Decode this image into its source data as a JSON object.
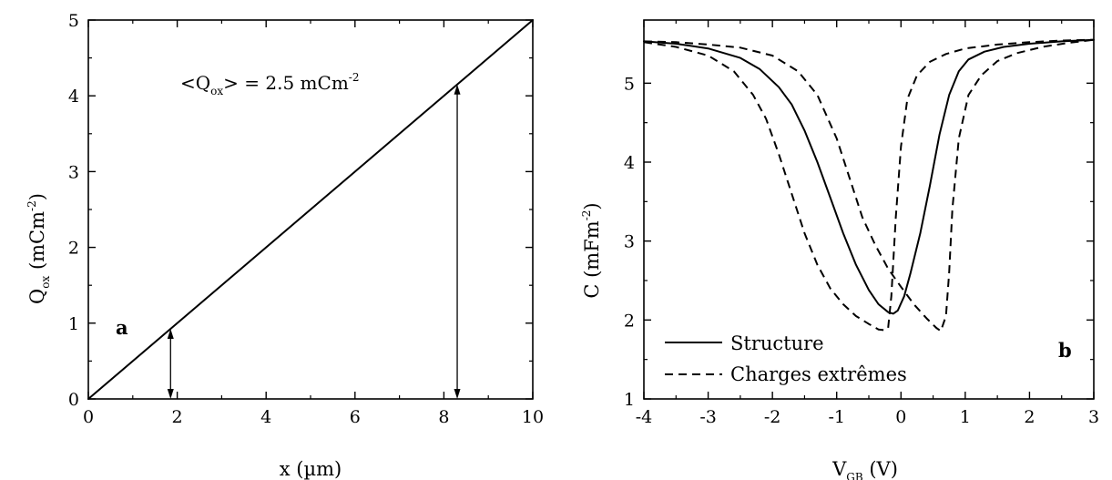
{
  "chart_data": [
    {
      "type": "line",
      "panel_label": "a",
      "xlabel": "x (µm)",
      "ylabel": "Q_ox (mCm^-2)",
      "xlim": [
        0,
        10
      ],
      "ylim": [
        0,
        5
      ],
      "x_ticks": [
        "0",
        "2",
        "4",
        "6",
        "8",
        "10"
      ],
      "y_ticks": [
        "0",
        "1",
        "2",
        "3",
        "4",
        "5"
      ],
      "annotation": {
        "open": "<Q",
        "sub": "ox",
        "mid": "> = 2.5 mCm",
        "sup": "-2"
      },
      "series": [
        {
          "x": [
            0,
            10
          ],
          "y": [
            0,
            5
          ],
          "style": "solid"
        }
      ],
      "arrows": [
        {
          "x": 1.85,
          "y_from": 0,
          "y_to": 0.925
        },
        {
          "x": 8.3,
          "y_from": 0,
          "y_to": 4.15
        }
      ]
    },
    {
      "type": "line",
      "panel_label": "b",
      "xlabel": "V_GB (V)",
      "ylabel": "C (mFm^-2)",
      "xlim": [
        -4,
        3
      ],
      "ylim": [
        1,
        5.8
      ],
      "x_ticks": [
        "-4",
        "-3",
        "-2",
        "-1",
        "0",
        "1",
        "2",
        "3"
      ],
      "y_ticks": [
        "1",
        "2",
        "3",
        "4",
        "5"
      ],
      "legend_position": "bottom-left",
      "legend": [
        {
          "label": "Structure",
          "style": "solid"
        },
        {
          "label": "Charges extrêmes",
          "style": "dashed"
        }
      ],
      "series": [
        {
          "name": "Structure",
          "style": "solid",
          "x": [
            -4,
            -3.5,
            -3,
            -2.5,
            -2.2,
            -1.9,
            -1.7,
            -1.5,
            -1.3,
            -1.1,
            -0.9,
            -0.7,
            -0.5,
            -0.35,
            -0.2,
            -0.12,
            -0.05,
            0.05,
            0.15,
            0.3,
            0.45,
            0.6,
            0.75,
            0.9,
            1.05,
            1.3,
            1.6,
            2,
            2.5,
            3
          ],
          "y": [
            5.53,
            5.5,
            5.44,
            5.32,
            5.18,
            4.95,
            4.73,
            4.4,
            4.0,
            3.55,
            3.1,
            2.7,
            2.38,
            2.2,
            2.1,
            2.08,
            2.12,
            2.3,
            2.6,
            3.1,
            3.7,
            4.35,
            4.85,
            5.15,
            5.3,
            5.4,
            5.46,
            5.5,
            5.53,
            5.55
          ]
        },
        {
          "name": "Charges extrêmes (low)",
          "style": "dashed",
          "x": [
            -4,
            -3.5,
            -3,
            -2.6,
            -2.3,
            -2.1,
            -1.9,
            -1.7,
            -1.5,
            -1.3,
            -1.1,
            -0.9,
            -0.7,
            -0.5,
            -0.35,
            -0.25,
            -0.2,
            -0.15,
            -0.08,
            0,
            0.1,
            0.25,
            0.45,
            0.7,
            1,
            1.5,
            2,
            2.5,
            3
          ],
          "y": [
            5.52,
            5.46,
            5.35,
            5.15,
            4.85,
            4.55,
            4.1,
            3.6,
            3.1,
            2.7,
            2.4,
            2.2,
            2.05,
            1.95,
            1.88,
            1.87,
            1.9,
            2.3,
            3.3,
            4.2,
            4.8,
            5.1,
            5.27,
            5.37,
            5.44,
            5.49,
            5.52,
            5.54,
            5.55
          ]
        },
        {
          "name": "Charges extrêmes (high)",
          "style": "dashed",
          "x": [
            -4,
            -3.5,
            -3,
            -2.5,
            -2,
            -1.6,
            -1.3,
            -1,
            -0.8,
            -0.6,
            -0.4,
            -0.2,
            0,
            0.2,
            0.4,
            0.55,
            0.62,
            0.7,
            0.75,
            0.8,
            0.9,
            1.05,
            1.25,
            1.5,
            1.8,
            2.2,
            2.6,
            3
          ],
          "y": [
            5.53,
            5.52,
            5.49,
            5.45,
            5.35,
            5.15,
            4.85,
            4.3,
            3.8,
            3.3,
            2.95,
            2.65,
            2.42,
            2.2,
            2.02,
            1.9,
            1.86,
            2.05,
            2.6,
            3.4,
            4.3,
            4.85,
            5.1,
            5.28,
            5.38,
            5.46,
            5.51,
            5.55
          ]
        }
      ]
    }
  ]
}
